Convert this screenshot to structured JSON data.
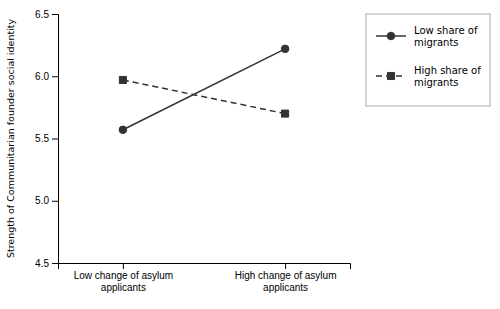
{
  "chart_data": {
    "type": "line",
    "categories": [
      "Low change of asylum\napplicants",
      "High change of asylum\napplicants"
    ],
    "series": [
      {
        "name": "Low share of\nmigrants",
        "color": "#333333",
        "marker": "circle",
        "line_style": "solid",
        "values": [
          5.57,
          6.22
        ]
      },
      {
        "name": "High share of\nmigrants",
        "color": "#333333",
        "marker": "square",
        "line_style": "dashed",
        "values": [
          5.97,
          5.7
        ]
      }
    ],
    "y_label": "Strength of Communitarian founder social identity",
    "ylim": [
      4.5,
      6.5
    ],
    "yticks": [
      4.5,
      {
        "value": 5.0,
        "label": "5.0"
      },
      5.5,
      {
        "value": 6.0,
        "label": "6.0"
      },
      6.5
    ],
    "grid": false,
    "legend": "right"
  }
}
